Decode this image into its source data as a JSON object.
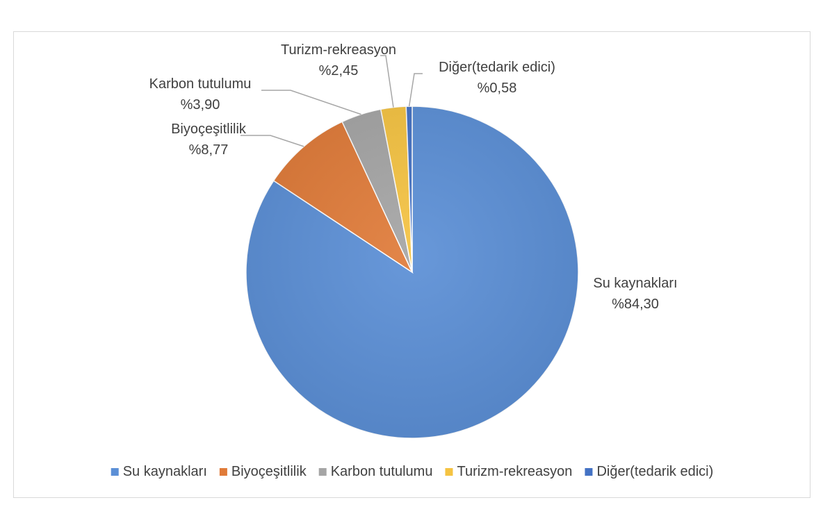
{
  "chart_data": {
    "type": "pie",
    "slices": [
      {
        "name": "Su kaynakları",
        "value": 84.3,
        "label": "%84,30",
        "color": "#5b8fd6"
      },
      {
        "name": "Biyoçeşitlilik",
        "value": 8.77,
        "label": "%8,77",
        "color": "#e07b39"
      },
      {
        "name": "Karbon tutulumu",
        "value": 3.9,
        "label": "%3,90",
        "color": "#a5a5a5"
      },
      {
        "name": "Turizm-rekreasyon",
        "value": 2.45,
        "label": "%2,45",
        "color": "#f5c342"
      },
      {
        "name": "Diğer(tedarik edici)",
        "value": 0.58,
        "label": "%0,58",
        "color": "#4472c4"
      }
    ],
    "legend_position": "bottom",
    "start_angle_deg": 0,
    "direction": "clockwise"
  }
}
